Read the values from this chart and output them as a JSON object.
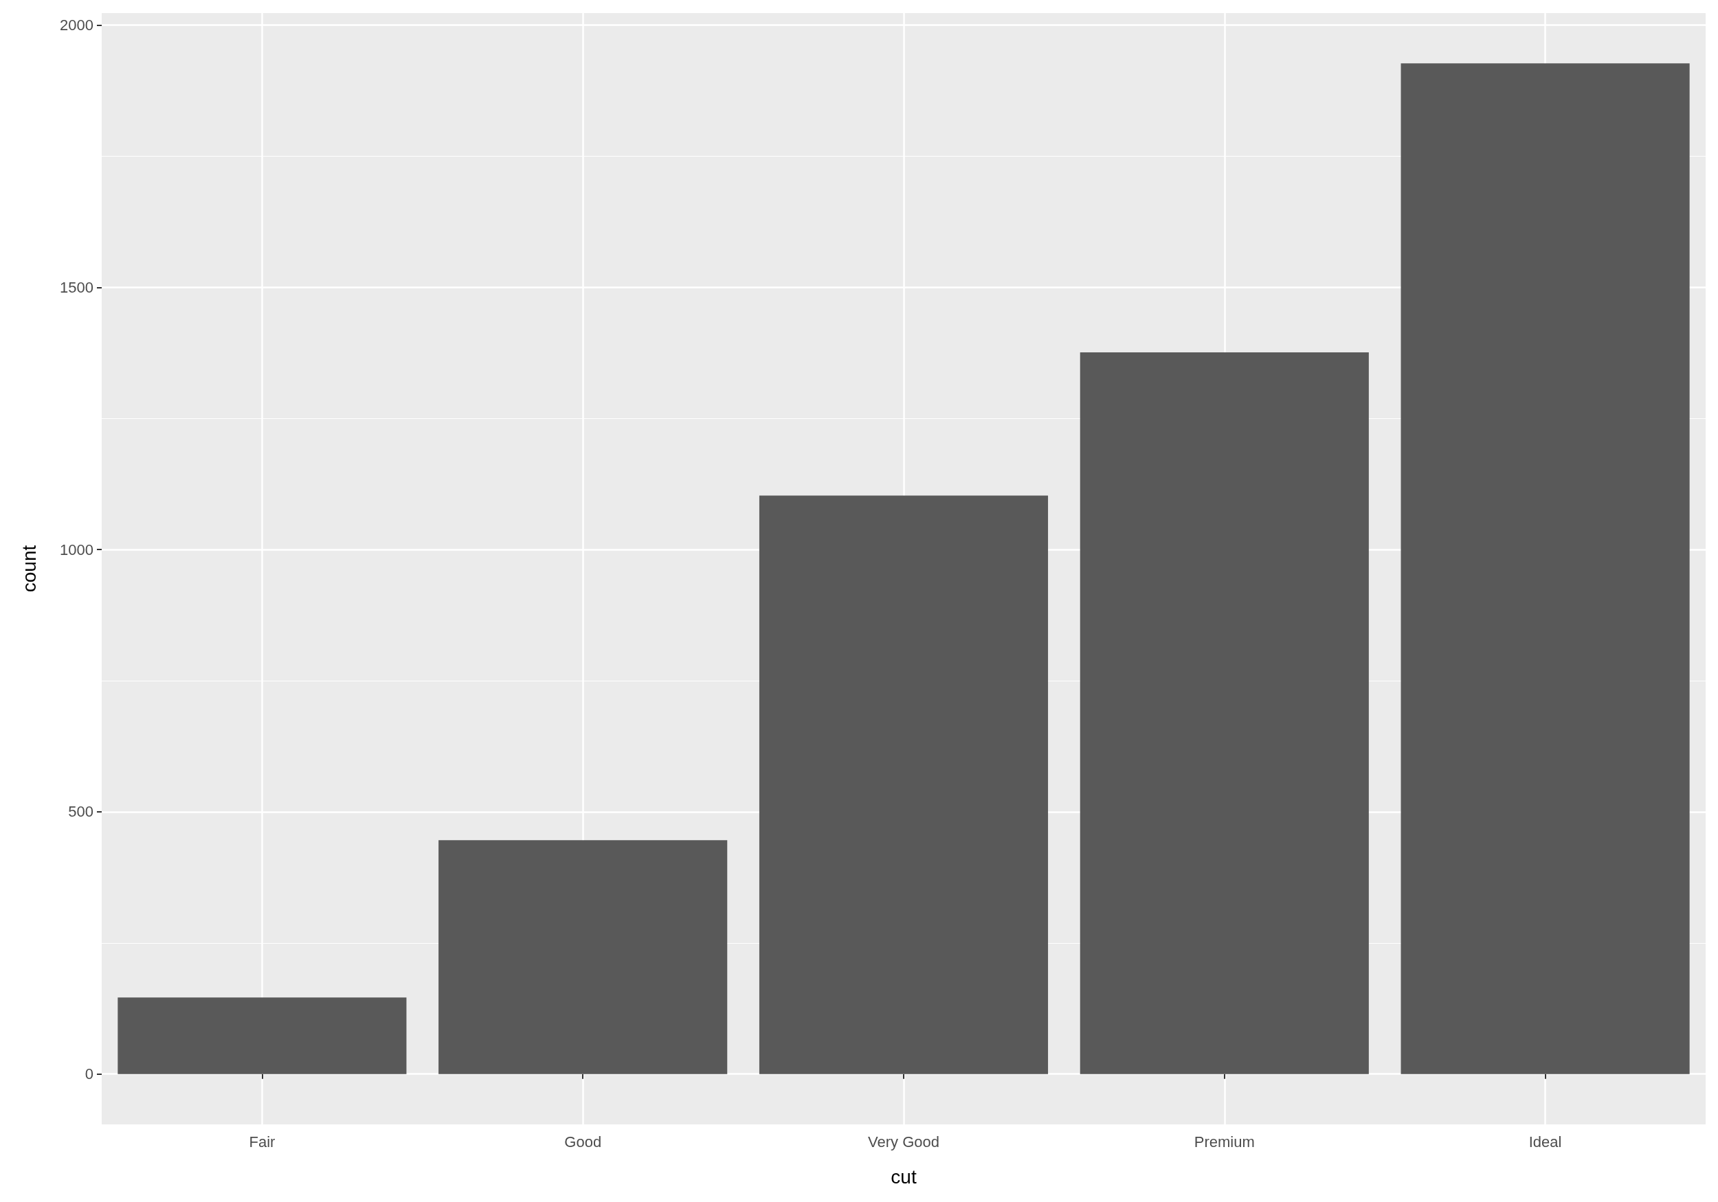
{
  "chart_data": {
    "type": "bar",
    "xlabel": "cut",
    "ylabel": "count",
    "categories": [
      "Fair",
      "Good",
      "Very Good",
      "Premium",
      "Ideal"
    ],
    "values": [
      146,
      446,
      1103,
      1376,
      1927
    ],
    "color": "#595959",
    "ylim": [
      -96,
      2023
    ],
    "yticks": [
      0,
      {
        "value": 250,
        "label": null
      },
      500,
      {
        "value": 750,
        "label": null
      },
      1000,
      {
        "value": 1250,
        "label": null
      },
      1500,
      {
        "value": 1750,
        "label": null
      },
      2000
    ],
    "grid": true
  }
}
